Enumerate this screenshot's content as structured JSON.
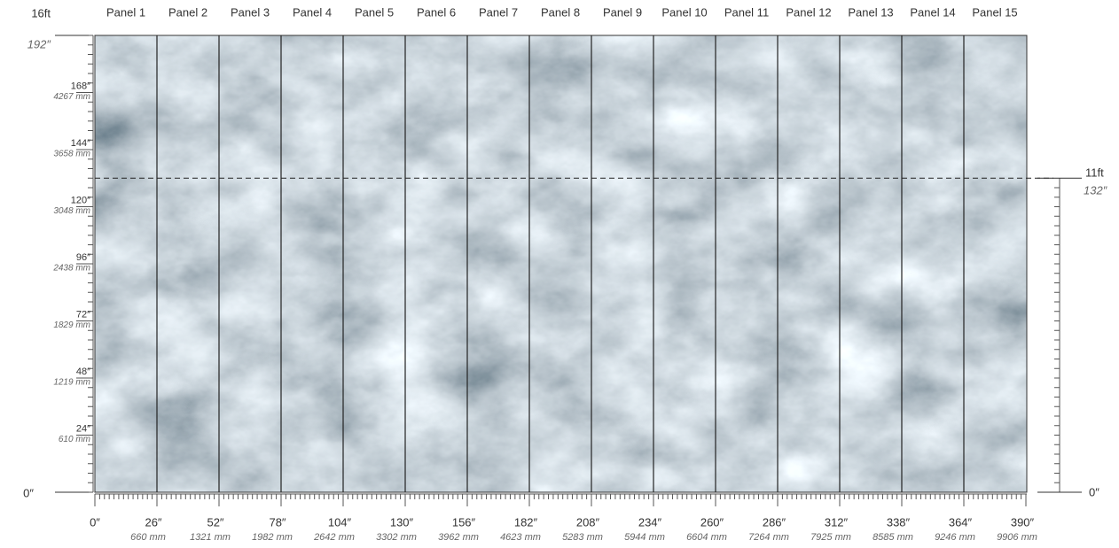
{
  "panels": [
    "Panel 1",
    "Panel 2",
    "Panel 3",
    "Panel 4",
    "Panel 5",
    "Panel 6",
    "Panel 7",
    "Panel 8",
    "Panel 9",
    "Panel 10",
    "Panel 11",
    "Panel 12",
    "Panel 13",
    "Panel 14",
    "Panel 15"
  ],
  "left_ruler": {
    "top_ft": "16ft",
    "top_in": "192″",
    "marks": [
      {
        "inch": "168″",
        "mm": "4267 mm"
      },
      {
        "inch": "144″",
        "mm": "3658 mm"
      },
      {
        "inch": "120″",
        "mm": "3048 mm"
      },
      {
        "inch": "96″",
        "mm": "2438 mm"
      },
      {
        "inch": "72″",
        "mm": "1829 mm"
      },
      {
        "inch": "48″",
        "mm": "1219 mm"
      },
      {
        "inch": "24″",
        "mm": "610 mm"
      }
    ],
    "bottom": "0″"
  },
  "bottom_ruler": {
    "zero": "0″",
    "marks": [
      {
        "inch": "26″",
        "mm": "660 mm"
      },
      {
        "inch": "52″",
        "mm": "1321 mm"
      },
      {
        "inch": "78″",
        "mm": "1982 mm"
      },
      {
        "inch": "104″",
        "mm": "2642 mm"
      },
      {
        "inch": "130″",
        "mm": "3302 mm"
      },
      {
        "inch": "156″",
        "mm": "3962 mm"
      },
      {
        "inch": "182″",
        "mm": "4623 mm"
      },
      {
        "inch": "208″",
        "mm": "5283 mm"
      },
      {
        "inch": "234″",
        "mm": "5944 mm"
      },
      {
        "inch": "260″",
        "mm": "6604 mm"
      },
      {
        "inch": "286″",
        "mm": "7264 mm"
      },
      {
        "inch": "312″",
        "mm": "7925 mm"
      },
      {
        "inch": "338″",
        "mm": "8585 mm"
      },
      {
        "inch": "364″",
        "mm": "9246 mm"
      },
      {
        "inch": "390″",
        "mm": "9906 mm"
      }
    ]
  },
  "right_ruler": {
    "height_ft": "11ft",
    "height_in": "132″",
    "bottom": "0″"
  }
}
